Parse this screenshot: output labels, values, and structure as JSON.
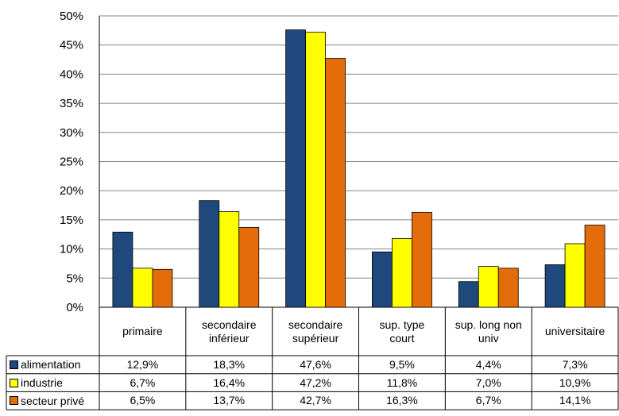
{
  "chart_data": {
    "type": "bar",
    "categories": [
      "primaire",
      "secondaire\ninférieur",
      "secondaire\nsupérieur",
      "sup. type\ncourt",
      "sup. long non\nuniv",
      "universitaire"
    ],
    "series": [
      {
        "name": "alimentation",
        "values": [
          12.9,
          18.3,
          47.6,
          9.5,
          4.4,
          7.3
        ],
        "labels": [
          "12,9%",
          "18,3%",
          "47,6%",
          "9,5%",
          "4,4%",
          "7,3%"
        ],
        "color": "#1f497d"
      },
      {
        "name": "industrie",
        "values": [
          6.7,
          16.4,
          47.2,
          11.8,
          7.0,
          10.9
        ],
        "labels": [
          "6,7%",
          "16,4%",
          "47,2%",
          "11,8%",
          "7,0%",
          "10,9%"
        ],
        "color": "#ffff00"
      },
      {
        "name": "secteur privé",
        "values": [
          6.5,
          13.7,
          42.7,
          16.3,
          6.7,
          14.1
        ],
        "labels": [
          "6,5%",
          "13,7%",
          "42,7%",
          "16,3%",
          "6,7%",
          "14,1%"
        ],
        "color": "#e46c0a"
      }
    ],
    "ylim": [
      0,
      50
    ],
    "yticks": [
      "0%",
      "5%",
      "10%",
      "15%",
      "20%",
      "25%",
      "30%",
      "35%",
      "40%",
      "45%",
      "50%"
    ],
    "grid": true,
    "legend": "data-table-left",
    "title": "",
    "xlabel": "",
    "ylabel": ""
  }
}
